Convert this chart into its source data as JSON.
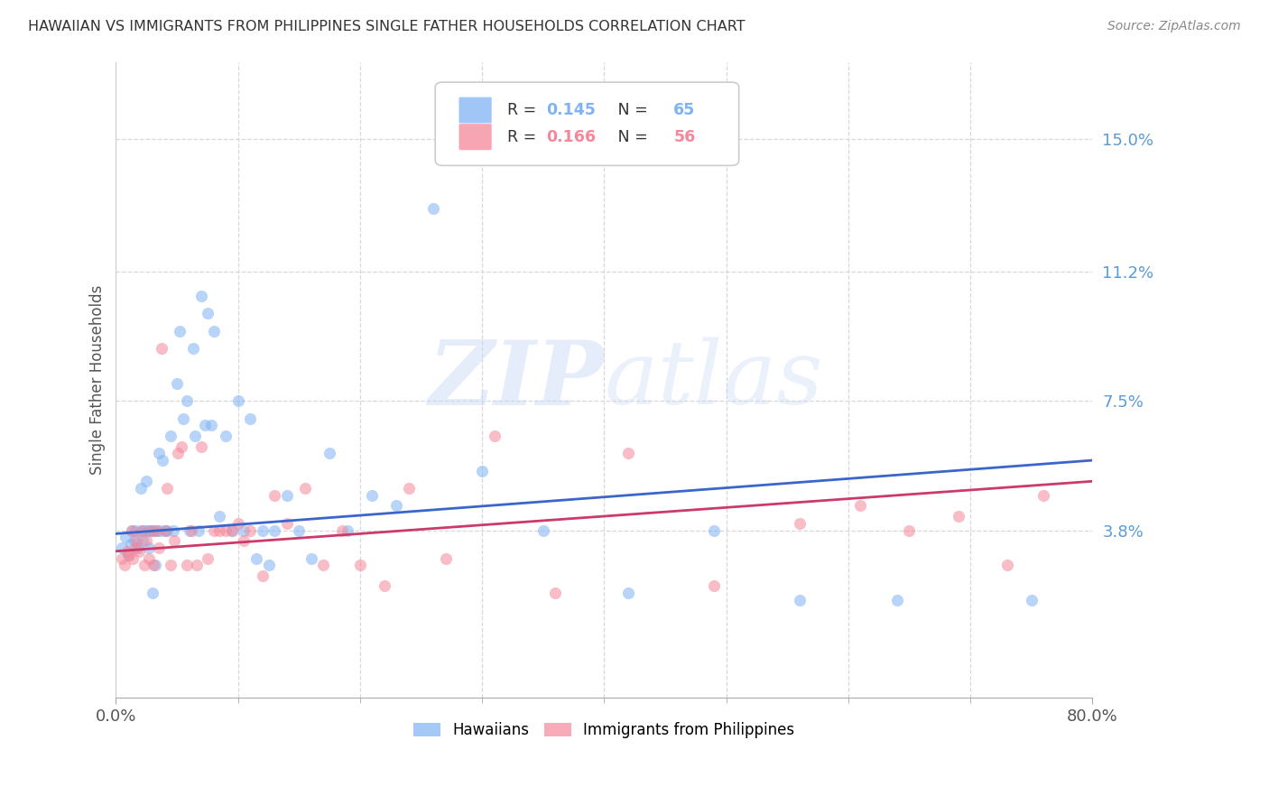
{
  "title": "HAWAIIAN VS IMMIGRANTS FROM PHILIPPINES SINGLE FATHER HOUSEHOLDS CORRELATION CHART",
  "source": "Source: ZipAtlas.com",
  "ylabel": "Single Father Households",
  "ytick_labels": [
    "3.8%",
    "7.5%",
    "11.2%",
    "15.0%"
  ],
  "ytick_values": [
    0.038,
    0.075,
    0.112,
    0.15
  ],
  "xlim": [
    0.0,
    0.8
  ],
  "ylim": [
    -0.01,
    0.172
  ],
  "blue_color": "#7fb3f5",
  "pink_color": "#f5879a",
  "blue_line_color": "#3a66cc",
  "pink_line_color": "#cc3a6b",
  "watermark_zip": "ZIP",
  "watermark_atlas": "atlas",
  "background_color": "#ffffff",
  "grid_color": "#d8d8d8",
  "title_color": "#333333",
  "right_axis_color": "#5b9bd5",
  "scatter_alpha": 0.55,
  "scatter_size": 90,
  "hawaiians_x": [
    0.005,
    0.008,
    0.01,
    0.012,
    0.013,
    0.015,
    0.016,
    0.018,
    0.02,
    0.021,
    0.022,
    0.023,
    0.025,
    0.026,
    0.027,
    0.028,
    0.03,
    0.031,
    0.032,
    0.033,
    0.035,
    0.036,
    0.038,
    0.04,
    0.042,
    0.045,
    0.047,
    0.05,
    0.052,
    0.055,
    0.058,
    0.06,
    0.063,
    0.065,
    0.068,
    0.07,
    0.073,
    0.075,
    0.078,
    0.08,
    0.085,
    0.09,
    0.095,
    0.1,
    0.105,
    0.11,
    0.115,
    0.12,
    0.125,
    0.13,
    0.14,
    0.15,
    0.16,
    0.175,
    0.19,
    0.21,
    0.23,
    0.26,
    0.3,
    0.35,
    0.42,
    0.49,
    0.56,
    0.64,
    0.75
  ],
  "hawaiians_y": [
    0.033,
    0.036,
    0.031,
    0.034,
    0.038,
    0.035,
    0.038,
    0.033,
    0.05,
    0.038,
    0.035,
    0.038,
    0.052,
    0.038,
    0.033,
    0.038,
    0.02,
    0.038,
    0.028,
    0.038,
    0.06,
    0.038,
    0.058,
    0.038,
    0.038,
    0.065,
    0.038,
    0.08,
    0.095,
    0.07,
    0.075,
    0.038,
    0.09,
    0.065,
    0.038,
    0.105,
    0.068,
    0.1,
    0.068,
    0.095,
    0.042,
    0.065,
    0.038,
    0.075,
    0.038,
    0.07,
    0.03,
    0.038,
    0.028,
    0.038,
    0.048,
    0.038,
    0.03,
    0.06,
    0.038,
    0.048,
    0.045,
    0.13,
    0.055,
    0.038,
    0.02,
    0.038,
    0.018,
    0.018,
    0.018
  ],
  "philippines_x": [
    0.005,
    0.007,
    0.009,
    0.011,
    0.013,
    0.014,
    0.016,
    0.017,
    0.019,
    0.021,
    0.023,
    0.025,
    0.027,
    0.029,
    0.031,
    0.033,
    0.035,
    0.037,
    0.04,
    0.042,
    0.045,
    0.048,
    0.051,
    0.054,
    0.058,
    0.062,
    0.066,
    0.07,
    0.075,
    0.08,
    0.085,
    0.09,
    0.095,
    0.1,
    0.105,
    0.11,
    0.12,
    0.13,
    0.14,
    0.155,
    0.17,
    0.185,
    0.2,
    0.22,
    0.24,
    0.27,
    0.31,
    0.36,
    0.42,
    0.49,
    0.56,
    0.61,
    0.65,
    0.69,
    0.73,
    0.76
  ],
  "philippines_y": [
    0.03,
    0.028,
    0.032,
    0.031,
    0.038,
    0.03,
    0.033,
    0.035,
    0.032,
    0.038,
    0.028,
    0.035,
    0.03,
    0.038,
    0.028,
    0.038,
    0.033,
    0.09,
    0.038,
    0.05,
    0.028,
    0.035,
    0.06,
    0.062,
    0.028,
    0.038,
    0.028,
    0.062,
    0.03,
    0.038,
    0.038,
    0.038,
    0.038,
    0.04,
    0.035,
    0.038,
    0.025,
    0.048,
    0.04,
    0.05,
    0.028,
    0.038,
    0.028,
    0.022,
    0.05,
    0.03,
    0.065,
    0.02,
    0.06,
    0.022,
    0.04,
    0.045,
    0.038,
    0.042,
    0.028,
    0.048
  ],
  "blue_R": "0.145",
  "blue_N": "65",
  "pink_R": "0.166",
  "pink_N": "56"
}
